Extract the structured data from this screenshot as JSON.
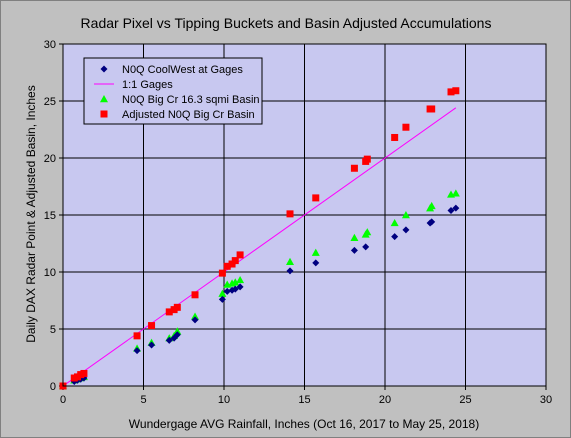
{
  "chart_data": {
    "type": "scatter",
    "title": "Radar Pixel vs Tipping Buckets and Basin Adjusted Accumulations",
    "xlabel": "Wundergage AVG Rainfall, Inches (Oct 16, 2017 to May 25, 2018)",
    "ylabel": "Daily DAX Radar Point & Adjusted Basin, Inches",
    "xlim": [
      0,
      30
    ],
    "ylim": [
      0,
      30
    ],
    "xticks": [
      "0",
      "5",
      "10",
      "15",
      "20",
      "25",
      "30"
    ],
    "yticks": [
      "0",
      "5",
      "10",
      "15",
      "20",
      "25",
      "30"
    ],
    "grid": true,
    "legend_position": "top-left",
    "colors": {
      "plot_background": "#c8c8f0",
      "page_background": "#c0c0c0",
      "gridline": "#000000"
    },
    "series": [
      {
        "name": "N0Q CoolWest at Gages",
        "marker": "diamond",
        "color": "#000080",
        "points": [
          [
            0,
            0
          ],
          [
            0.7,
            0.4
          ],
          [
            0.9,
            0.5
          ],
          [
            1.1,
            0.6
          ],
          [
            1.3,
            0.7
          ],
          [
            4.6,
            3.1
          ],
          [
            5.5,
            3.6
          ],
          [
            6.6,
            4.0
          ],
          [
            6.9,
            4.2
          ],
          [
            7.1,
            4.5
          ],
          [
            8.2,
            5.8
          ],
          [
            9.9,
            7.6
          ],
          [
            10.2,
            8.3
          ],
          [
            10.5,
            8.4
          ],
          [
            10.7,
            8.5
          ],
          [
            11.0,
            8.7
          ],
          [
            14.1,
            10.1
          ],
          [
            15.7,
            10.8
          ],
          [
            18.1,
            11.9
          ],
          [
            18.8,
            12.2
          ],
          [
            20.6,
            13.1
          ],
          [
            21.3,
            13.7
          ],
          [
            22.8,
            14.3
          ],
          [
            22.9,
            14.4
          ],
          [
            24.1,
            15.4
          ],
          [
            24.4,
            15.6
          ]
        ]
      },
      {
        "name": "1:1 Gages",
        "marker": "line",
        "color": "#ff00ff",
        "points": [
          [
            0,
            0
          ],
          [
            24.4,
            24.4
          ]
        ]
      },
      {
        "name": "N0Q Big Cr 16.3 sqmi Basin",
        "marker": "triangle",
        "color": "#00ff00",
        "points": [
          [
            0,
            0
          ],
          [
            0.7,
            0.5
          ],
          [
            0.9,
            0.6
          ],
          [
            1.1,
            0.7
          ],
          [
            1.3,
            0.8
          ],
          [
            4.6,
            3.3
          ],
          [
            5.5,
            3.8
          ],
          [
            6.6,
            4.2
          ],
          [
            6.9,
            4.4
          ],
          [
            7.1,
            4.8
          ],
          [
            8.2,
            6.1
          ],
          [
            9.9,
            8.1
          ],
          [
            10.2,
            8.9
          ],
          [
            10.5,
            9.0
          ],
          [
            10.7,
            9.1
          ],
          [
            11.0,
            9.3
          ],
          [
            14.1,
            10.9
          ],
          [
            15.7,
            11.7
          ],
          [
            18.1,
            13.0
          ],
          [
            18.8,
            13.3
          ],
          [
            18.9,
            13.5
          ],
          [
            20.6,
            14.3
          ],
          [
            21.3,
            15.0
          ],
          [
            22.8,
            15.6
          ],
          [
            22.9,
            15.8
          ],
          [
            24.1,
            16.8
          ],
          [
            24.4,
            16.9
          ]
        ]
      },
      {
        "name": "Adjusted N0Q Big Cr Basin",
        "marker": "square",
        "color": "#ff0000",
        "points": [
          [
            0,
            0
          ],
          [
            0.7,
            0.7
          ],
          [
            0.9,
            0.8
          ],
          [
            1.1,
            1.0
          ],
          [
            1.3,
            1.1
          ],
          [
            4.6,
            4.4
          ],
          [
            5.5,
            5.3
          ],
          [
            6.6,
            6.5
          ],
          [
            6.9,
            6.7
          ],
          [
            7.1,
            6.9
          ],
          [
            8.2,
            8.0
          ],
          [
            9.9,
            9.9
          ],
          [
            10.2,
            10.5
          ],
          [
            10.5,
            10.7
          ],
          [
            10.7,
            11.0
          ],
          [
            11.0,
            11.5
          ],
          [
            14.1,
            15.1
          ],
          [
            15.7,
            16.5
          ],
          [
            18.1,
            19.1
          ],
          [
            18.8,
            19.7
          ],
          [
            18.9,
            19.9
          ],
          [
            20.6,
            21.8
          ],
          [
            21.3,
            22.7
          ],
          [
            22.8,
            24.3
          ],
          [
            22.9,
            24.3
          ],
          [
            24.1,
            25.8
          ],
          [
            24.4,
            25.9
          ]
        ]
      }
    ]
  }
}
